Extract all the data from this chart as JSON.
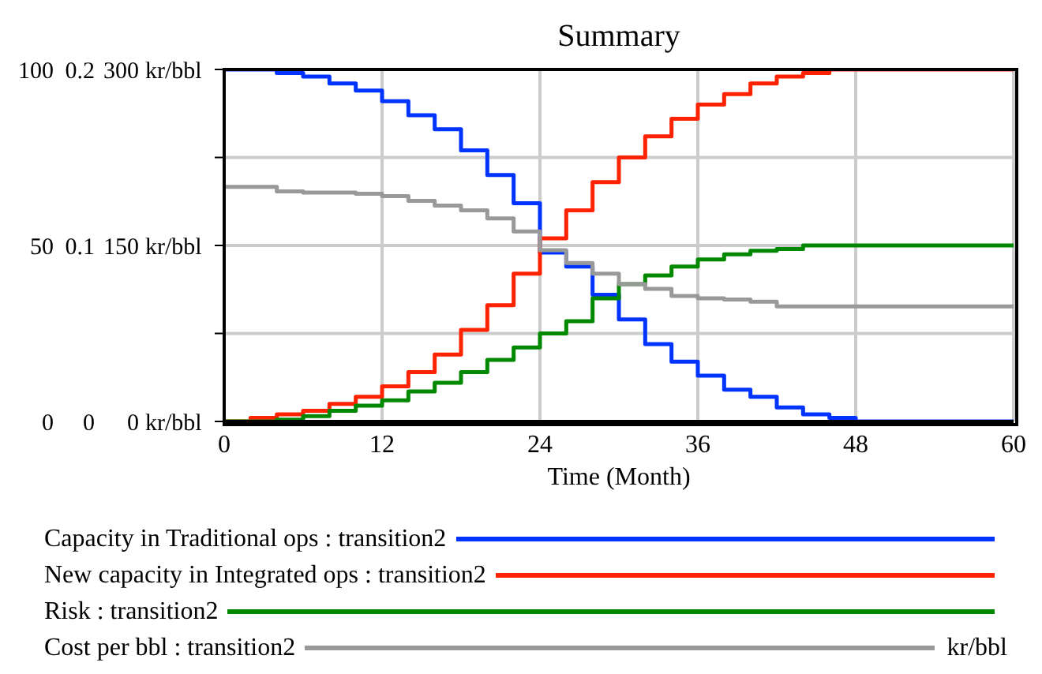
{
  "chart_data": {
    "type": "step",
    "title": "Summary",
    "xlabel": "Time (Month)",
    "x": [
      0,
      2,
      4,
      6,
      8,
      10,
      12,
      14,
      16,
      18,
      20,
      22,
      24,
      26,
      28,
      30,
      32,
      34,
      36,
      38,
      40,
      42,
      44,
      46,
      48,
      50,
      52,
      54,
      56,
      58,
      60
    ],
    "xlim": [
      0,
      60
    ],
    "xticks": [
      0,
      12,
      24,
      36,
      48,
      60
    ],
    "ylim": [
      0,
      100
    ],
    "yticks": [
      0,
      {
        "value": 25,
        "label": null
      },
      50,
      {
        "value": 75,
        "label": null
      },
      100
    ],
    "y2lim": [
      0,
      0.2
    ],
    "y2ticks": [
      0,
      0.1,
      0.2
    ],
    "y3lim": [
      0,
      300
    ],
    "y3ticks": [
      {
        "value": 0,
        "label": "0 kr/bbl"
      },
      {
        "value": 150,
        "label": "150 kr/bbl"
      },
      {
        "value": 300,
        "label": "300 kr/bbl"
      }
    ],
    "grid": true,
    "legend": "bottom",
    "annotations": [
      "kr/bbl"
    ],
    "series": [
      {
        "name": "Capacity in Traditional ops : transition2",
        "color": "#0033ff",
        "values": [
          100,
          100,
          99,
          98,
          96,
          94,
          91,
          87,
          83,
          77,
          70,
          62,
          48,
          44,
          36,
          29,
          22,
          17,
          13,
          9,
          7,
          4,
          2,
          1,
          0,
          0,
          0,
          0,
          0,
          0,
          0
        ]
      },
      {
        "name": "New capacity in Integrated ops : transition2",
        "color": "#ff2200",
        "values": [
          0,
          1,
          2,
          3,
          5,
          7,
          10,
          14,
          19,
          26,
          33,
          42,
          52,
          60,
          68,
          75,
          81,
          86,
          90,
          93,
          96,
          98,
          99,
          100,
          100,
          100,
          100,
          100,
          100,
          100,
          100
        ]
      },
      {
        "name": "Risk : transition2",
        "color": "#008800",
        "axis": "y2",
        "values": [
          0,
          0,
          0.001,
          0.003,
          0.006,
          0.009,
          0.012,
          0.017,
          0.022,
          0.028,
          0.035,
          0.042,
          0.05,
          0.057,
          0.07,
          0.078,
          0.083,
          0.088,
          0.092,
          0.095,
          0.097,
          0.098,
          0.1,
          0.1,
          0.1,
          0.1,
          0.1,
          0.1,
          0.1,
          0.1,
          0.1
        ]
      },
      {
        "name": "Cost per bbl : transition2",
        "color": "#999999",
        "axis": "y3",
        "values": [
          200,
          200,
          196,
          195,
          195,
          194,
          192,
          188,
          184,
          180,
          173,
          162,
          146,
          135,
          126,
          117,
          113,
          107,
          105,
          104,
          102,
          98,
          98,
          98,
          98,
          98,
          98,
          98,
          98,
          98,
          98
        ]
      }
    ]
  }
}
